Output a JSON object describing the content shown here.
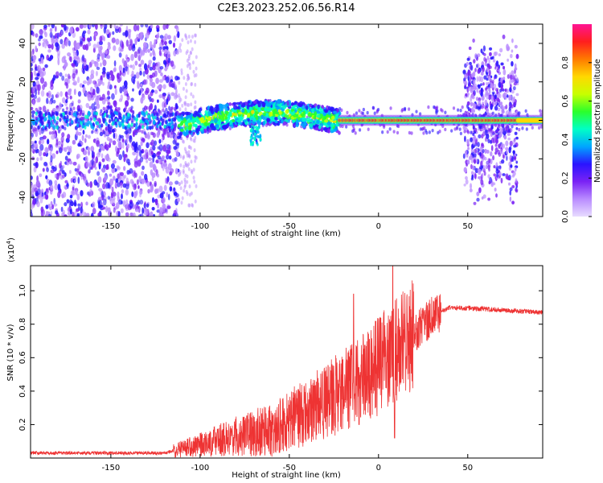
{
  "title": "C2E3.2023.252.06.56.R14",
  "chart_data": [
    {
      "type": "heatmap",
      "xlabel": "Height of straight line (km)",
      "ylabel": "Frequency (Hz)",
      "xlim": [
        -195,
        92
      ],
      "ylim": [
        -50,
        50
      ],
      "xticks": [
        -150,
        -100,
        -50,
        0,
        50
      ],
      "yticks": [
        -40,
        -20,
        0,
        20,
        40
      ],
      "colorbar": {
        "label": "Normalized spectral amplitude",
        "range": [
          0.0,
          1.0
        ],
        "ticks": [
          "0.0",
          "0.2",
          "0.4",
          "0.6",
          "0.8"
        ],
        "colors": [
          "#e8dcff",
          "#b98cff",
          "#7a22f5",
          "#2a14ff",
          "#00a6ff",
          "#00ffc6",
          "#2bff2b",
          "#c8ff00",
          "#ffd800",
          "#ff7a00",
          "#ff1e1e",
          "#ff1493"
        ]
      },
      "regions": [
        {
          "name": "noise",
          "x_range": [
            -195,
            -112
          ],
          "y_spread": 50,
          "amplitude": 0.12
        },
        {
          "name": "signal-rising",
          "x_range": [
            -112,
            -22
          ],
          "center_start": -3,
          "center_end": 4,
          "amplitude": 0.6
        },
        {
          "name": "signal-stable",
          "x_range": [
            -22,
            92
          ],
          "center": 0,
          "amplitude": 0.95
        },
        {
          "name": "noise-burst",
          "x_range": [
            48,
            78
          ],
          "y_spread": 40,
          "amplitude": 0.15
        }
      ]
    },
    {
      "type": "line",
      "xlabel": "Height of straight line (km)",
      "ylabel": "SNR (10 * v/v)",
      "y_multiplier": "(x10",
      "y_multiplier_exp": "4",
      "y_multiplier_close": ")",
      "xlim": [
        -195,
        92
      ],
      "ylim": [
        0,
        1.15
      ],
      "xticks": [
        -150,
        -100,
        -50,
        0,
        50
      ],
      "yticks": [
        "0.2",
        "0.4",
        "0.6",
        "0.8",
        "1.0"
      ],
      "color": "#ee3333",
      "series_shape": [
        {
          "x": -195,
          "y": 0.03
        },
        {
          "x": -120,
          "y": 0.03
        },
        {
          "x": -100,
          "y": 0.08
        },
        {
          "x": -80,
          "y": 0.13
        },
        {
          "x": -60,
          "y": 0.17
        },
        {
          "x": -40,
          "y": 0.28
        },
        {
          "x": -20,
          "y": 0.4
        },
        {
          "x": 0,
          "y": 0.55
        },
        {
          "x": 10,
          "y": 0.65
        },
        {
          "x": 20,
          "y": 0.74
        },
        {
          "x": 30,
          "y": 0.85
        },
        {
          "x": 40,
          "y": 0.9
        },
        {
          "x": 60,
          "y": 0.89
        },
        {
          "x": 92,
          "y": 0.87
        }
      ],
      "peaks": [
        {
          "x": -14,
          "y": 0.98
        },
        {
          "x": 8,
          "y": 1.15
        },
        {
          "x": 9,
          "y": 0.12
        }
      ]
    }
  ]
}
